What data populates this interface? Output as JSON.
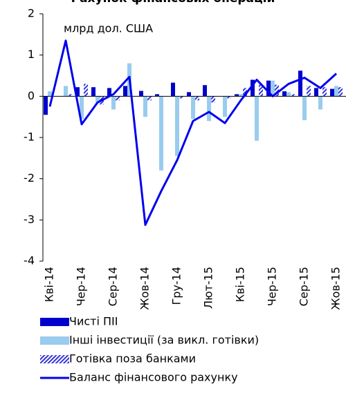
{
  "chart_data": {
    "type": "bar",
    "title": "Рахунок фінансових операцій",
    "annotation": "млрд дол. США",
    "categories": [
      "Кві-14",
      null,
      "Чер-14",
      null,
      "Сер-14",
      null,
      "Жов-14",
      null,
      "Гру-14",
      null,
      "Лют-15",
      null,
      "Кві-15",
      null,
      "Чер-15",
      null,
      "Сер-15",
      null,
      "Жов-15"
    ],
    "ylim": [
      -4,
      2
    ],
    "yticks": [
      -4,
      -3,
      -2,
      -1,
      0,
      1,
      2
    ],
    "series": [
      {
        "name": "Чисті ПІІ",
        "type": "bar",
        "color": "#0000cc",
        "values": [
          -0.45,
          0.0,
          0.22,
          0.22,
          0.2,
          0.25,
          0.13,
          0.05,
          0.33,
          0.1,
          0.27,
          0.0,
          0.05,
          0.4,
          0.38,
          0.12,
          0.62,
          0.2,
          0.18
        ]
      },
      {
        "name": "Інші інвестиції (за викл. готівки)",
        "type": "bar",
        "color": "#99ccee",
        "values": [
          0.12,
          0.25,
          -0.55,
          -0.15,
          -0.32,
          0.8,
          -0.5,
          -1.8,
          -1.45,
          -0.55,
          -0.6,
          -0.5,
          0.05,
          -1.08,
          0.38,
          0.1,
          -0.58,
          -0.32,
          0.25
        ]
      },
      {
        "name": "Готівка поза банками",
        "type": "bar",
        "pattern": "hatch",
        "color": "#3333dd",
        "values": [
          0.0,
          0.05,
          0.3,
          -0.2,
          -0.1,
          0.0,
          -0.1,
          0.0,
          -0.05,
          -0.1,
          -0.15,
          -0.05,
          0.2,
          0.3,
          0.28,
          0.05,
          0.25,
          0.22,
          0.22
        ]
      },
      {
        "name": "Баланс фінансового рахунку",
        "type": "line",
        "color": "#0000ee",
        "values": [
          -0.25,
          1.35,
          -0.68,
          -0.15,
          0.05,
          0.47,
          -3.12,
          -2.3,
          -1.55,
          -0.6,
          -0.38,
          -0.65,
          -0.1,
          0.4,
          0.0,
          0.3,
          0.45,
          0.2,
          0.55
        ]
      }
    ]
  }
}
